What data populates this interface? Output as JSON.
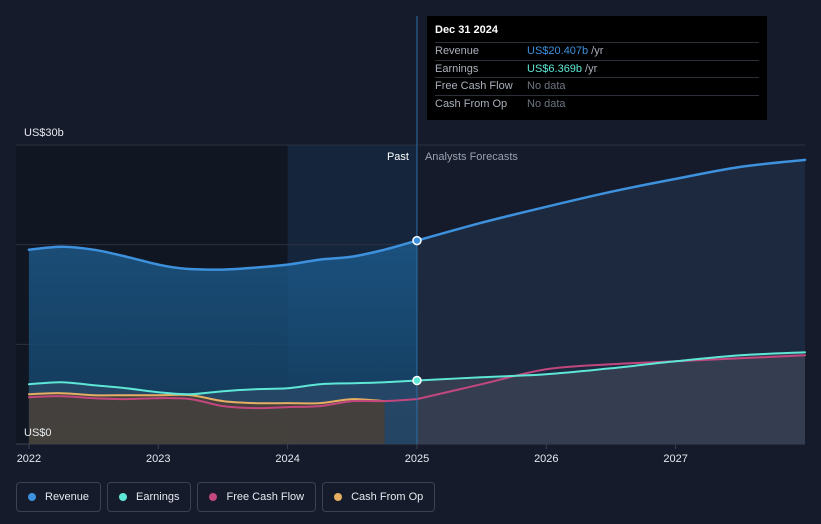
{
  "chart_data": {
    "type": "area",
    "y_unit_label_top": "US$30b",
    "y_unit_label_bottom": "US$0",
    "ylim": [
      0,
      30
    ],
    "xlim": [
      2021.9,
      2028.0
    ],
    "x_ticks": [
      2022,
      2023,
      2024,
      2025,
      2026,
      2027
    ],
    "x_tick_labels": [
      "2022",
      "2023",
      "2024",
      "2025",
      "2026",
      "2027"
    ],
    "y_gridlines": [
      0,
      10,
      20,
      30
    ],
    "past_label": "Past",
    "forecast_label": "Analysts Forecasts",
    "divider_x": 2025.0,
    "highlight_start_x": 2024.0,
    "series": [
      {
        "name": "Revenue",
        "color": "#3d91dd",
        "past": [
          [
            2022.0,
            19.5
          ],
          [
            2022.25,
            19.8
          ],
          [
            2022.5,
            19.5
          ],
          [
            2022.75,
            18.8
          ],
          [
            2023.0,
            18.0
          ],
          [
            2023.2,
            17.6
          ],
          [
            2023.5,
            17.5
          ],
          [
            2023.75,
            17.7
          ],
          [
            2024.0,
            18.0
          ],
          [
            2024.25,
            18.5
          ],
          [
            2024.5,
            18.8
          ],
          [
            2024.75,
            19.5
          ],
          [
            2025.0,
            20.407
          ]
        ],
        "forecast": [
          [
            2025.0,
            20.407
          ],
          [
            2025.5,
            22.2
          ],
          [
            2026.0,
            23.8
          ],
          [
            2026.5,
            25.3
          ],
          [
            2027.0,
            26.6
          ],
          [
            2027.5,
            27.8
          ],
          [
            2028.0,
            28.5
          ]
        ]
      },
      {
        "name": "Earnings",
        "color": "#5ee7d6",
        "past": [
          [
            2022.0,
            6.0
          ],
          [
            2022.25,
            6.2
          ],
          [
            2022.5,
            5.9
          ],
          [
            2022.75,
            5.6
          ],
          [
            2023.0,
            5.2
          ],
          [
            2023.25,
            5.0
          ],
          [
            2023.5,
            5.3
          ],
          [
            2023.75,
            5.5
          ],
          [
            2024.0,
            5.6
          ],
          [
            2024.25,
            6.0
          ],
          [
            2024.5,
            6.1
          ],
          [
            2024.75,
            6.2
          ],
          [
            2025.0,
            6.369
          ]
        ],
        "forecast": [
          [
            2025.0,
            6.369
          ],
          [
            2025.5,
            6.7
          ],
          [
            2026.0,
            7.0
          ],
          [
            2026.5,
            7.6
          ],
          [
            2027.0,
            8.3
          ],
          [
            2027.5,
            8.9
          ],
          [
            2028.0,
            9.2
          ]
        ]
      },
      {
        "name": "Free Cash Flow",
        "color": "#c2477e",
        "past": [
          [
            2022.0,
            4.7
          ],
          [
            2022.25,
            4.8
          ],
          [
            2022.5,
            4.6
          ],
          [
            2022.75,
            4.5
          ],
          [
            2023.0,
            4.6
          ],
          [
            2023.25,
            4.5
          ],
          [
            2023.5,
            3.8
          ],
          [
            2023.75,
            3.6
          ],
          [
            2024.0,
            3.7
          ],
          [
            2024.25,
            3.8
          ],
          [
            2024.5,
            4.3
          ],
          [
            2024.75,
            4.3
          ],
          [
            2025.0,
            4.5
          ]
        ],
        "forecast": [
          [
            2025.0,
            4.5
          ],
          [
            2025.5,
            6.0
          ],
          [
            2026.0,
            7.5
          ],
          [
            2026.5,
            8.0
          ],
          [
            2027.0,
            8.3
          ],
          [
            2027.5,
            8.6
          ],
          [
            2028.0,
            8.9
          ]
        ]
      },
      {
        "name": "Cash From Op",
        "color": "#e6ae63",
        "past": [
          [
            2022.0,
            5.0
          ],
          [
            2022.25,
            5.1
          ],
          [
            2022.5,
            4.9
          ],
          [
            2022.75,
            4.9
          ],
          [
            2023.0,
            4.9
          ],
          [
            2023.25,
            4.9
          ],
          [
            2023.5,
            4.3
          ],
          [
            2023.75,
            4.1
          ],
          [
            2024.0,
            4.1
          ],
          [
            2024.25,
            4.1
          ],
          [
            2024.5,
            4.5
          ],
          [
            2024.75,
            4.3
          ]
        ],
        "forecast": []
      }
    ],
    "highlight_points": [
      {
        "series": "Revenue",
        "x": 2025.0,
        "y": 20.407
      },
      {
        "series": "Earnings",
        "x": 2025.0,
        "y": 6.369
      }
    ]
  },
  "tooltip": {
    "date": "Dec 31 2024",
    "rows": [
      {
        "name": "Revenue",
        "value": "US$20.407b",
        "unit": "/yr",
        "color": "#3d91dd"
      },
      {
        "name": "Earnings",
        "value": "US$6.369b",
        "unit": "/yr",
        "color": "#5ee7d6"
      },
      {
        "name": "Free Cash Flow",
        "value": "No data",
        "unit": "",
        "color": ""
      },
      {
        "name": "Cash From Op",
        "value": "No data",
        "unit": "",
        "color": ""
      }
    ]
  },
  "legend": [
    {
      "name": "Revenue",
      "color": "#3d91dd"
    },
    {
      "name": "Earnings",
      "color": "#5ee7d6"
    },
    {
      "name": "Free Cash Flow",
      "color": "#c2477e"
    },
    {
      "name": "Cash From Op",
      "color": "#e6ae63"
    }
  ]
}
